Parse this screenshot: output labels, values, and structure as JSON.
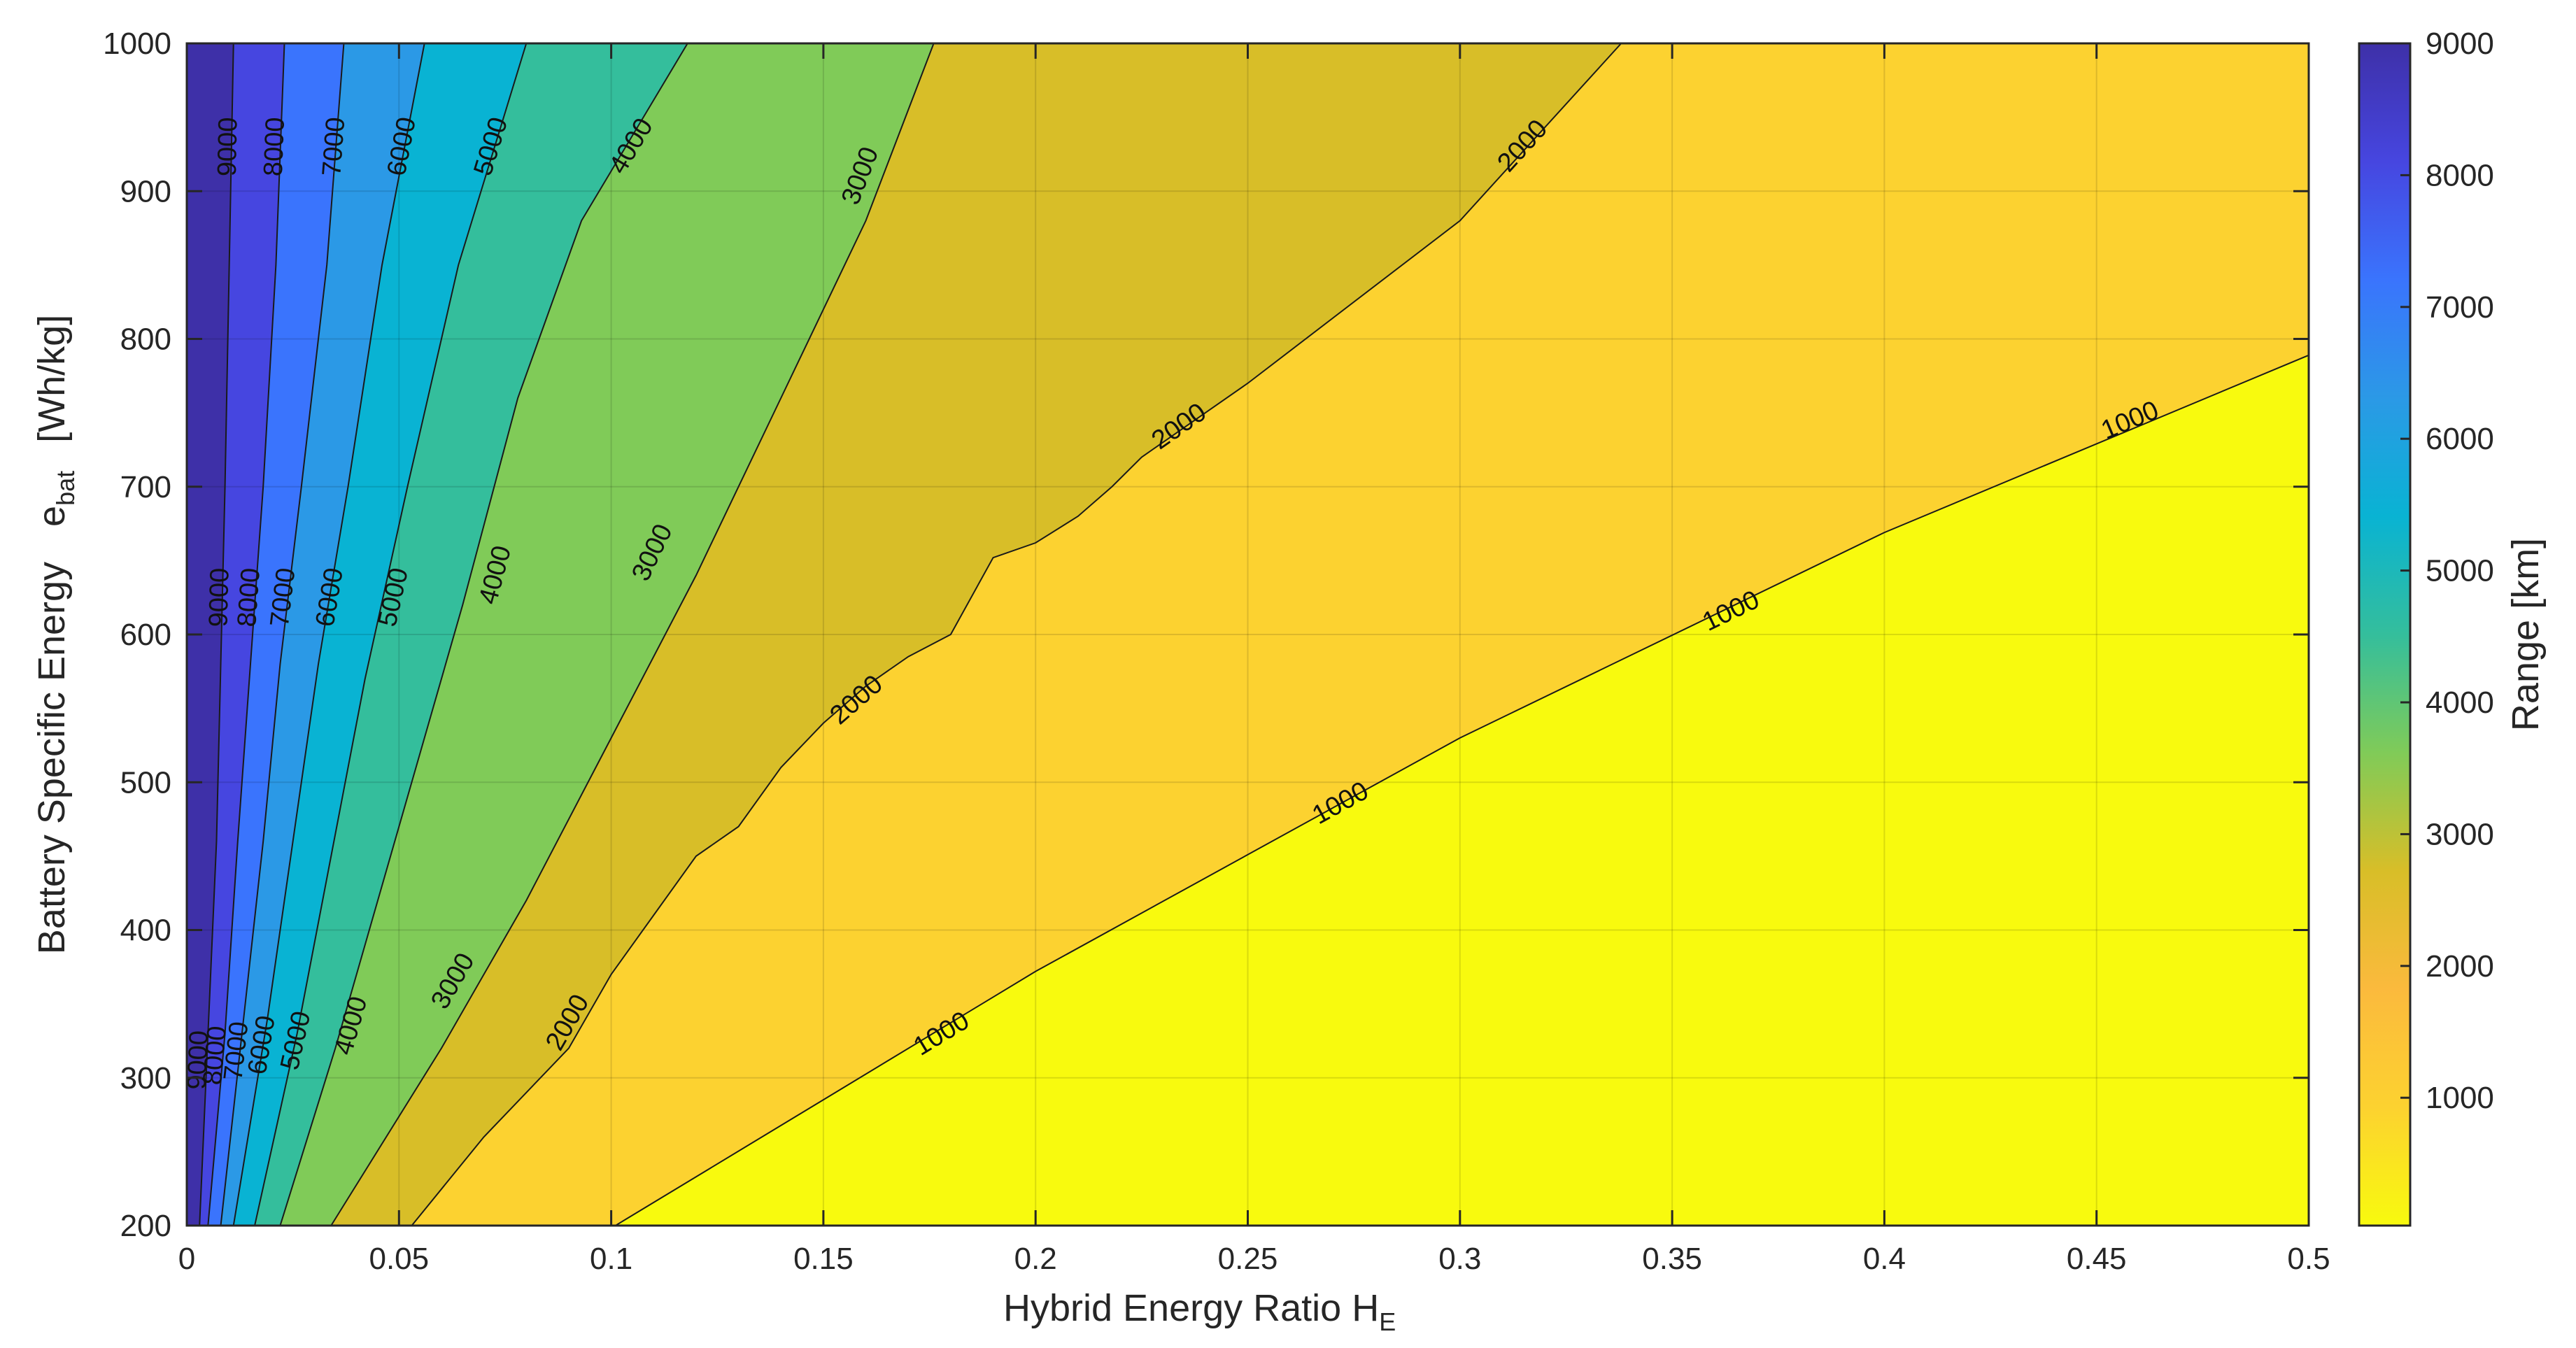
{
  "chart_data": {
    "type": "contour",
    "xlabel": "Hybrid  Energy  Ratio      H",
    "xlabel_subscript": "E",
    "ylabel_parts": [
      "Battery  Specific  Energy",
      "e",
      "bat",
      "[Wh/kg]"
    ],
    "colorbar_label": "Range  [km]",
    "xlim": [
      0,
      0.5
    ],
    "ylim": [
      200,
      1000
    ],
    "x_ticks": [
      "0",
      "0.05",
      "0.1",
      "0.15",
      "0.2",
      "0.25",
      "0.3",
      "0.35",
      "0.4",
      "0.45",
      "0.5"
    ],
    "y_ticks": [
      "200",
      "300",
      "400",
      "500",
      "600",
      "700",
      "800",
      "900",
      "1000"
    ],
    "colorbar_ticks": [
      "1000",
      "2000",
      "3000",
      "4000",
      "5000",
      "6000",
      "7000",
      "8000",
      "9000"
    ],
    "colorbar_range": [
      30,
      9000
    ],
    "grid": true,
    "levels": [
      1000,
      2000,
      3000,
      4000,
      5000,
      6000,
      7000,
      8000,
      9000
    ],
    "colormap": {
      "under_1000": "#f8fa0e",
      "1000_2000": "#fcd230",
      "2000_3000": "#d8be28",
      "3000_4000": "#80cb58",
      "4000_5000": "#34be9c",
      "5000_6000": "#09b3d3",
      "6000_7000": "#2b99e6",
      "7000_8000": "#3a74fd",
      "8000_9000": "#4646e0",
      "above_9000": "#3e30a8"
    },
    "contours": [
      {
        "level": 1000,
        "points": [
          [
            0.101,
            200
          ],
          [
            0.2,
            372
          ],
          [
            0.3,
            530
          ],
          [
            0.4,
            669
          ],
          [
            0.5,
            789
          ]
        ]
      },
      {
        "level": 2000,
        "points": [
          [
            0.053,
            200
          ],
          [
            0.07,
            260
          ],
          [
            0.09,
            320
          ],
          [
            0.1,
            370
          ],
          [
            0.11,
            410
          ],
          [
            0.12,
            450
          ],
          [
            0.13,
            470
          ],
          [
            0.14,
            510
          ],
          [
            0.15,
            540
          ],
          [
            0.16,
            565
          ],
          [
            0.17,
            585
          ],
          [
            0.18,
            600
          ],
          [
            0.19,
            652
          ],
          [
            0.2,
            662
          ],
          [
            0.21,
            680
          ],
          [
            0.218,
            700
          ],
          [
            0.225,
            720
          ],
          [
            0.25,
            770
          ],
          [
            0.3,
            880
          ],
          [
            0.338,
            1000
          ]
        ]
      },
      {
        "level": 3000,
        "points": [
          [
            0.034,
            200
          ],
          [
            0.06,
            320
          ],
          [
            0.08,
            420
          ],
          [
            0.1,
            530
          ],
          [
            0.12,
            640
          ],
          [
            0.14,
            760
          ],
          [
            0.16,
            880
          ],
          [
            0.176,
            1000
          ]
        ]
      },
      {
        "level": 4000,
        "points": [
          [
            0.022,
            200
          ],
          [
            0.035,
            320
          ],
          [
            0.045,
            420
          ],
          [
            0.055,
            520
          ],
          [
            0.065,
            620
          ],
          [
            0.078,
            760
          ],
          [
            0.093,
            880
          ],
          [
            0.118,
            1000
          ]
        ]
      },
      {
        "level": 5000,
        "points": [
          [
            0.016,
            200
          ],
          [
            0.026,
            330
          ],
          [
            0.034,
            450
          ],
          [
            0.042,
            570
          ],
          [
            0.052,
            700
          ],
          [
            0.064,
            850
          ],
          [
            0.08,
            1000
          ]
        ]
      },
      {
        "level": 6000,
        "points": [
          [
            0.011,
            200
          ],
          [
            0.019,
            340
          ],
          [
            0.025,
            460
          ],
          [
            0.031,
            580
          ],
          [
            0.038,
            700
          ],
          [
            0.046,
            850
          ],
          [
            0.056,
            1000
          ]
        ]
      },
      {
        "level": 7000,
        "points": [
          [
            0.008,
            200
          ],
          [
            0.013,
            330
          ],
          [
            0.018,
            460
          ],
          [
            0.022,
            580
          ],
          [
            0.027,
            700
          ],
          [
            0.033,
            850
          ],
          [
            0.037,
            1000
          ]
        ]
      },
      {
        "level": 8000,
        "points": [
          [
            0.005,
            200
          ],
          [
            0.009,
            330
          ],
          [
            0.012,
            460
          ],
          [
            0.015,
            580
          ],
          [
            0.018,
            700
          ],
          [
            0.021,
            850
          ],
          [
            0.023,
            1000
          ]
        ]
      },
      {
        "level": 9000,
        "points": [
          [
            0.003,
            200
          ],
          [
            0.005,
            330
          ],
          [
            0.007,
            460
          ],
          [
            0.008,
            580
          ],
          [
            0.009,
            700
          ],
          [
            0.01,
            850
          ],
          [
            0.011,
            1000
          ]
        ]
      }
    ],
    "contour_labels": [
      {
        "text": "9000",
        "x": 0.01,
        "y": 930
      },
      {
        "text": "8000",
        "x": 0.021,
        "y": 930
      },
      {
        "text": "7000",
        "x": 0.035,
        "y": 930
      },
      {
        "text": "6000",
        "x": 0.051,
        "y": 930
      },
      {
        "text": "5000",
        "x": 0.072,
        "y": 930
      },
      {
        "text": "4000",
        "x": 0.105,
        "y": 930
      },
      {
        "text": "3000",
        "x": 0.159,
        "y": 910
      },
      {
        "text": "2000",
        "x": 0.315,
        "y": 930
      },
      {
        "text": "2000",
        "x": 0.234,
        "y": 740
      },
      {
        "text": "1000",
        "x": 0.458,
        "y": 744
      },
      {
        "text": "9000",
        "x": 0.008,
        "y": 625
      },
      {
        "text": "8000",
        "x": 0.015,
        "y": 625
      },
      {
        "text": "7000",
        "x": 0.023,
        "y": 625
      },
      {
        "text": "6000",
        "x": 0.034,
        "y": 625
      },
      {
        "text": "5000",
        "x": 0.049,
        "y": 625
      },
      {
        "text": "4000",
        "x": 0.073,
        "y": 640
      },
      {
        "text": "3000",
        "x": 0.11,
        "y": 655
      },
      {
        "text": "2000",
        "x": 0.158,
        "y": 555
      },
      {
        "text": "1000",
        "x": 0.364,
        "y": 615
      },
      {
        "text": "1000",
        "x": 0.272,
        "y": 485
      },
      {
        "text": "1000",
        "x": 0.178,
        "y": 329
      },
      {
        "text": "2000",
        "x": 0.09,
        "y": 337
      },
      {
        "text": "3000",
        "x": 0.063,
        "y": 365
      },
      {
        "text": "4000",
        "x": 0.039,
        "y": 335
      },
      {
        "text": "5000",
        "x": 0.026,
        "y": 325
      },
      {
        "text": "6000",
        "x": 0.018,
        "y": 322
      },
      {
        "text": "7000",
        "x": 0.012,
        "y": 318
      },
      {
        "text": "8000",
        "x": 0.007,
        "y": 315
      },
      {
        "text": "9000",
        "x": 0.003,
        "y": 312
      }
    ]
  }
}
